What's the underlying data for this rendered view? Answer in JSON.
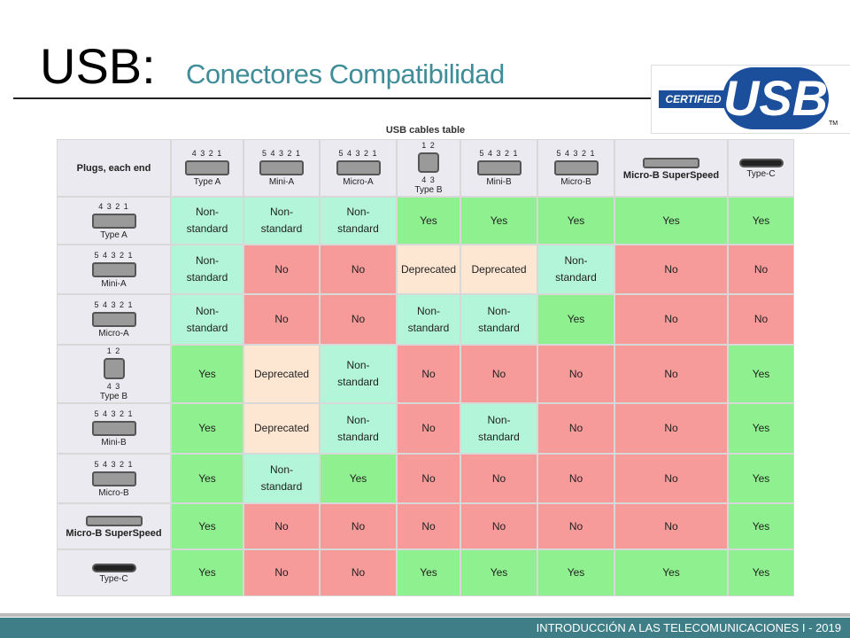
{
  "header": {
    "title": "USB:",
    "subtitle": "Conectores Compatibilidad"
  },
  "logo": {
    "certified": "CERTIFIED",
    "brand": "USB",
    "tm": "TM"
  },
  "table": {
    "caption": "USB cables table",
    "corner": "Plugs, each end",
    "plugs": [
      {
        "label": "Type A",
        "pins": "4 3 2 1"
      },
      {
        "label": "Mini-A",
        "pins": "5 4 3 2 1"
      },
      {
        "label": "Micro-A",
        "pins": "5 4 3 2 1"
      },
      {
        "label": "Type B",
        "pins": "1 2",
        "pins_bottom": "4 3"
      },
      {
        "label": "Mini-B",
        "pins": "5 4 3 2 1"
      },
      {
        "label": "Micro-B",
        "pins": "5 4 3 2 1"
      },
      {
        "label": "Micro-B SuperSpeed"
      },
      {
        "label": "Type-C"
      }
    ],
    "rows": [
      [
        "Non-standard",
        "Non-standard",
        "Non-standard",
        "Yes",
        "Yes",
        "Yes",
        "Yes",
        "Yes"
      ],
      [
        "Non-standard",
        "No",
        "No",
        "Deprecated",
        "Deprecated",
        "Non-standard",
        "No",
        "No"
      ],
      [
        "Non-standard",
        "No",
        "No",
        "Non-standard",
        "Non-standard",
        "Yes",
        "No",
        "No"
      ],
      [
        "Yes",
        "Deprecated",
        "Non-standard",
        "No",
        "No",
        "No",
        "No",
        "Yes"
      ],
      [
        "Yes",
        "Deprecated",
        "Non-standard",
        "No",
        "Non-standard",
        "No",
        "No",
        "Yes"
      ],
      [
        "Yes",
        "Non-standard",
        "Yes",
        "No",
        "No",
        "No",
        "No",
        "Yes"
      ],
      [
        "Yes",
        "No",
        "No",
        "No",
        "No",
        "No",
        "No",
        "Yes"
      ],
      [
        "Yes",
        "No",
        "No",
        "Yes",
        "Yes",
        "Yes",
        "Yes",
        "Yes"
      ]
    ]
  },
  "footer": "INTRODUCCIÓN A LAS TELECOMUNICACIONES I - 2019"
}
